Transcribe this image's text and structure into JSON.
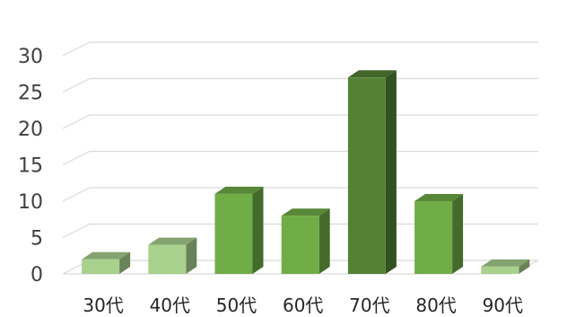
{
  "chart_data": {
    "type": "bar",
    "style": "3d-column",
    "title": "",
    "xlabel": "",
    "ylabel": "",
    "categories": [
      "30代",
      "40代",
      "50代",
      "60代",
      "70代",
      "80代",
      "90代"
    ],
    "values": [
      2,
      4,
      11,
      8,
      27,
      10,
      1
    ],
    "ylim": [
      0,
      30
    ],
    "yticks": [
      0,
      5,
      10,
      15,
      20,
      25,
      30
    ],
    "grid": true,
    "legend": "none",
    "bar_colors": [
      "#a9d18e",
      "#a9d18e",
      "#70ad47",
      "#70ad47",
      "#548235",
      "#70ad47",
      "#a9d18e"
    ]
  }
}
